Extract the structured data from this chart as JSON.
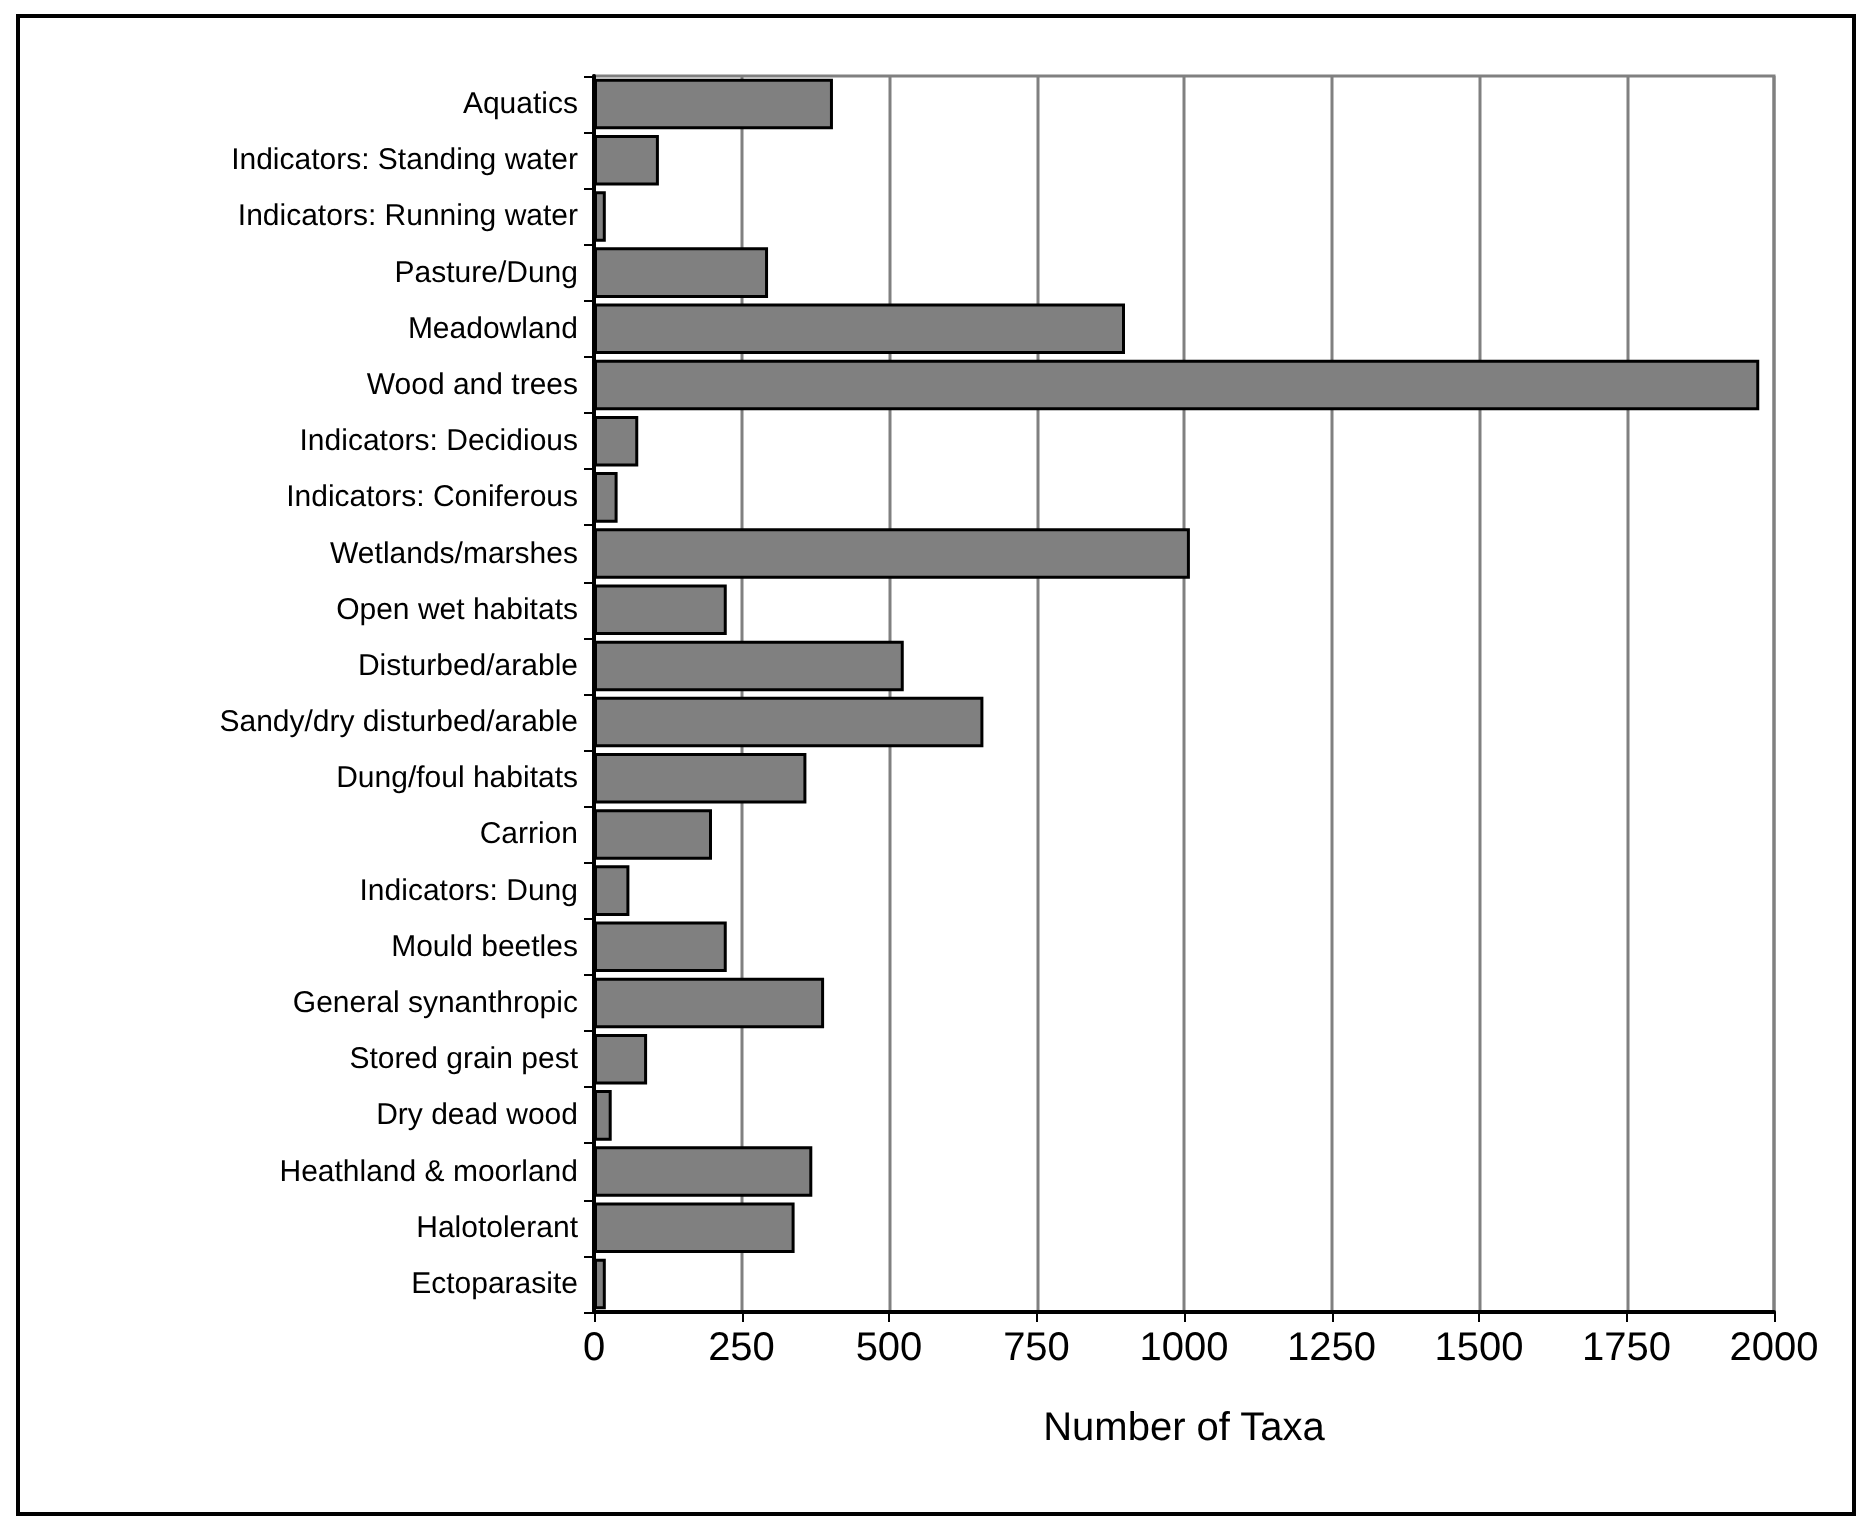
{
  "chart_data": {
    "type": "bar",
    "orientation": "horizontal",
    "xlabel": "Number of Taxa",
    "categories": [
      "Aquatics",
      "Indicators: Standing water",
      "Indicators: Running water",
      "Pasture/Dung",
      "Meadowland",
      "Wood and trees",
      "Indicators: Decidious",
      "Indicators: Coniferous",
      "Wetlands/marshes",
      "Open wet habitats",
      "Disturbed/arable",
      "Sandy/dry disturbed/arable",
      "Dung/foul habitats",
      "Carrion",
      "Indicators: Dung",
      "Mould beetles",
      "General synanthropic",
      "Stored grain pest",
      "Dry dead wood",
      "Heathland & moorland",
      "Halotolerant",
      "Ectoparasite"
    ],
    "values": [
      405,
      110,
      20,
      295,
      900,
      1975,
      75,
      40,
      1010,
      225,
      525,
      660,
      360,
      200,
      60,
      225,
      390,
      90,
      30,
      370,
      340,
      20
    ],
    "color": "#808080",
    "xlim": [
      0,
      2000
    ],
    "xticks": [
      0,
      250,
      500,
      750,
      1000,
      1250,
      1500,
      1750,
      2000
    ],
    "grid": "x"
  }
}
